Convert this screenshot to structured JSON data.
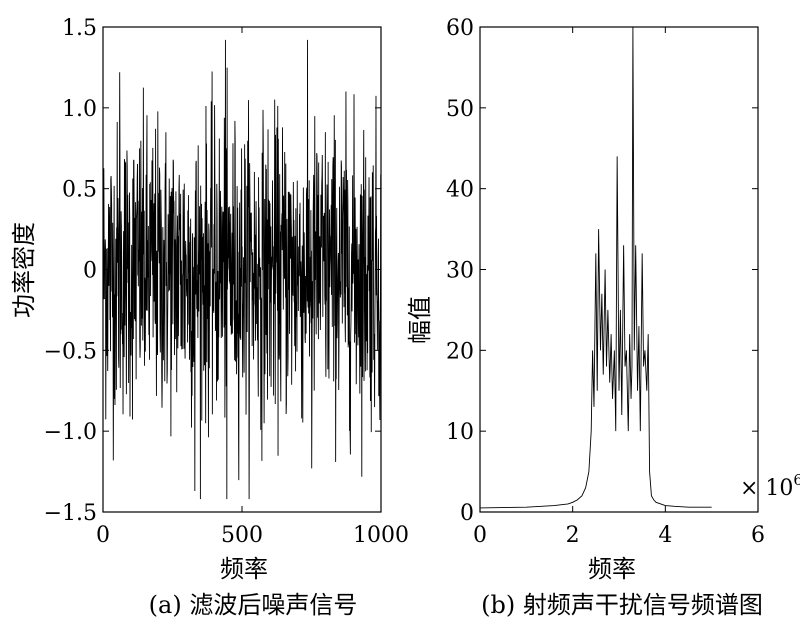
{
  "chart_data": [
    {
      "type": "line",
      "caption": "(a) 滤波后噪声信号",
      "xlabel": "频率",
      "ylabel": "功率密度",
      "xlim": [
        0,
        1000
      ],
      "ylim": [
        -1.5,
        1.5
      ],
      "xticks": [
        0,
        500,
        1000
      ],
      "xtick_labels": [
        "0",
        "500",
        "1000"
      ],
      "yticks": [
        1.5,
        1.0,
        0.5,
        0,
        -0.5,
        -1.0,
        -1.5
      ],
      "ytick_labels": [
        "1.5",
        "1.0",
        "0.5",
        "0",
        "−0.5",
        "−1.0",
        "−1.5"
      ],
      "grid": false,
      "n_points": 1000,
      "std": 0.45,
      "series": [
        {
          "values": []
        }
      ]
    },
    {
      "type": "line",
      "caption": "(b) 射频声干扰信号频谱图",
      "xlabel": "频率",
      "ylabel": "幅值",
      "xlim": [
        0,
        6
      ],
      "ylim": [
        0,
        60
      ],
      "xticks": [
        0,
        2,
        4,
        6
      ],
      "xtick_labels": [
        "0",
        "2",
        "4",
        "6"
      ],
      "yticks": [
        60,
        50,
        40,
        30,
        20,
        10,
        0
      ],
      "ytick_labels": [
        "60",
        "50",
        "40",
        "30",
        "20",
        "10",
        "0"
      ],
      "x_multiplier_base": "× 10",
      "x_multiplier_exp": "6",
      "grid": false,
      "series": [
        {
          "x": [
            0,
            1.0,
            1.6,
            1.9,
            2.0,
            2.1,
            2.2,
            2.28,
            2.35,
            2.4,
            2.43,
            2.46,
            2.5,
            2.53,
            2.56,
            2.6,
            2.63,
            2.66,
            2.7,
            2.73,
            2.76,
            2.8,
            2.83,
            2.86,
            2.9,
            2.93,
            2.96,
            3.0,
            3.03,
            3.06,
            3.1,
            3.13,
            3.16,
            3.2,
            3.23,
            3.26,
            3.28,
            3.3,
            3.33,
            3.36,
            3.4,
            3.43,
            3.46,
            3.5,
            3.53,
            3.56,
            3.6,
            3.63,
            3.66,
            3.7,
            3.75,
            3.8,
            3.9,
            4.0,
            4.2,
            4.5,
            5.0
          ],
          "values": [
            0.5,
            0.6,
            0.8,
            1.0,
            1.2,
            1.5,
            2.0,
            3.0,
            5.0,
            10.0,
            20.0,
            13.0,
            32.0,
            15.0,
            35.0,
            20.0,
            27.0,
            17.0,
            30.0,
            18.0,
            25.0,
            16.0,
            22.0,
            14.0,
            20.0,
            10.0,
            44.0,
            15.0,
            25.0,
            12.0,
            33.0,
            18.0,
            20.0,
            10.0,
            22.0,
            14.0,
            18.0,
            60.0,
            20.0,
            33.0,
            15.0,
            23.0,
            10.0,
            32.0,
            18.0,
            20.0,
            15.0,
            22.0,
            5.0,
            2.0,
            1.5,
            1.2,
            1.0,
            0.8,
            0.7,
            0.6,
            0.6
          ]
        }
      ]
    }
  ]
}
